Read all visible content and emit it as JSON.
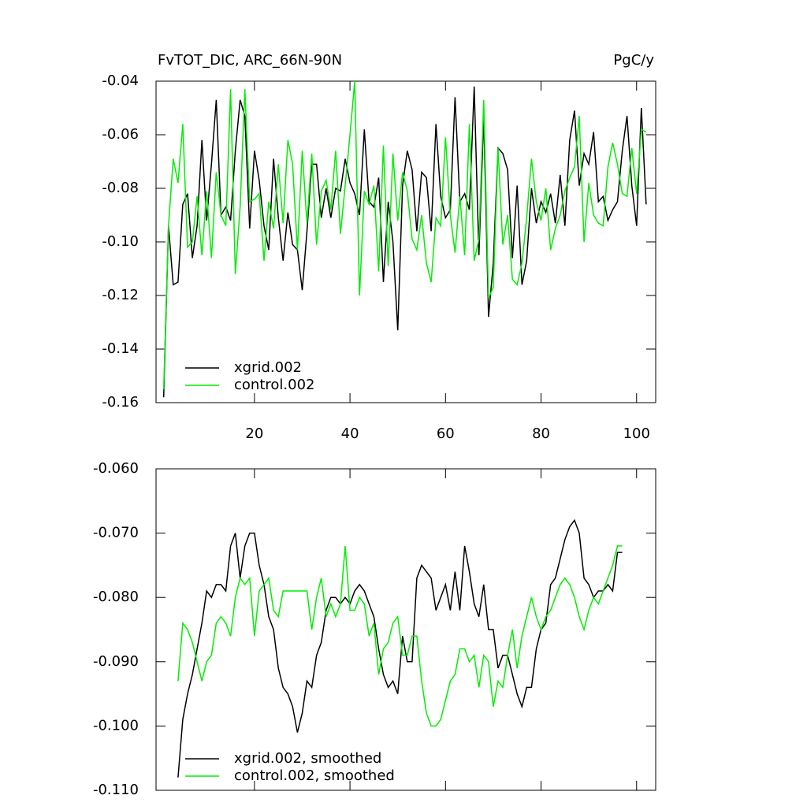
{
  "chart_data": [
    {
      "type": "line",
      "title": "FvTOT_DIC, ARC_66N-90N",
      "units": "PgC/y",
      "x": [
        1,
        2,
        3,
        4,
        5,
        6,
        7,
        8,
        9,
        10,
        11,
        12,
        13,
        14,
        15,
        16,
        17,
        18,
        19,
        20,
        21,
        22,
        23,
        24,
        25,
        26,
        27,
        28,
        29,
        30,
        31,
        32,
        33,
        34,
        35,
        36,
        37,
        38,
        39,
        40,
        41,
        42,
        43,
        44,
        45,
        46,
        47,
        48,
        49,
        50,
        51,
        52,
        53,
        54,
        55,
        56,
        57,
        58,
        59,
        60,
        61,
        62,
        63,
        64,
        65,
        66,
        67,
        68,
        69,
        70,
        71,
        72,
        73,
        74,
        75,
        76,
        77,
        78,
        79,
        80,
        81,
        82,
        83,
        84,
        85,
        86,
        87,
        88,
        89,
        90,
        91,
        92,
        93,
        94,
        95,
        96,
        97,
        98,
        99,
        100,
        101,
        102
      ],
      "series": [
        {
          "name": "xgrid.002",
          "color": "#000000",
          "values": [
            -0.158,
            -0.094,
            -0.116,
            -0.115,
            -0.086,
            -0.082,
            -0.106,
            -0.094,
            -0.062,
            -0.092,
            -0.071,
            -0.047,
            -0.09,
            -0.087,
            -0.092,
            -0.066,
            -0.047,
            -0.053,
            -0.095,
            -0.066,
            -0.077,
            -0.094,
            -0.103,
            -0.069,
            -0.091,
            -0.107,
            -0.089,
            -0.101,
            -0.103,
            -0.118,
            -0.096,
            -0.071,
            -0.071,
            -0.091,
            -0.08,
            -0.091,
            -0.08,
            -0.081,
            -0.069,
            -0.078,
            -0.082,
            -0.09,
            -0.058,
            -0.085,
            -0.087,
            -0.076,
            -0.115,
            -0.085,
            -0.1,
            -0.133,
            -0.079,
            -0.066,
            -0.073,
            -0.096,
            -0.074,
            -0.076,
            -0.096,
            -0.056,
            -0.083,
            -0.091,
            -0.088,
            -0.046,
            -0.085,
            -0.082,
            -0.088,
            -0.042,
            -0.105,
            -0.053,
            -0.128,
            -0.108,
            -0.065,
            -0.067,
            -0.073,
            -0.106,
            -0.079,
            -0.116,
            -0.107,
            -0.08,
            -0.093,
            -0.085,
            -0.089,
            -0.082,
            -0.093,
            -0.075,
            -0.094,
            -0.062,
            -0.051,
            -0.079,
            -0.067,
            -0.071,
            -0.059,
            -0.085,
            -0.083,
            -0.092,
            -0.088,
            -0.085,
            -0.066,
            -0.053,
            -0.079,
            -0.094,
            -0.05,
            -0.086
          ]
        },
        {
          "name": "control.002",
          "color": "#00ee00",
          "values": [
            -0.155,
            -0.094,
            -0.069,
            -0.078,
            -0.056,
            -0.102,
            -0.1,
            -0.083,
            -0.105,
            -0.081,
            -0.106,
            -0.074,
            -0.09,
            -0.094,
            -0.043,
            -0.112,
            -0.087,
            -0.043,
            -0.085,
            -0.084,
            -0.082,
            -0.107,
            -0.085,
            -0.095,
            -0.071,
            -0.093,
            -0.062,
            -0.071,
            -0.103,
            -0.066,
            -0.093,
            -0.067,
            -0.101,
            -0.081,
            -0.077,
            -0.088,
            -0.066,
            -0.097,
            -0.079,
            -0.06,
            -0.04,
            -0.12,
            -0.081,
            -0.086,
            -0.079,
            -0.111,
            -0.064,
            -0.109,
            -0.067,
            -0.092,
            -0.074,
            -0.081,
            -0.099,
            -0.103,
            -0.09,
            -0.108,
            -0.115,
            -0.091,
            -0.094,
            -0.061,
            -0.09,
            -0.104,
            -0.083,
            -0.105,
            -0.056,
            -0.107,
            -0.099,
            -0.047,
            -0.121,
            -0.117,
            -0.065,
            -0.101,
            -0.09,
            -0.114,
            -0.116,
            -0.108,
            -0.091,
            -0.069,
            -0.085,
            -0.092,
            -0.08,
            -0.103,
            -0.095,
            -0.09,
            -0.081,
            -0.076,
            -0.072,
            -0.053,
            -0.1,
            -0.078,
            -0.09,
            -0.093,
            -0.094,
            -0.072,
            -0.063,
            -0.071,
            -0.082,
            -0.083,
            -0.065,
            -0.082,
            -0.058,
            -0.059
          ]
        }
      ],
      "xlim": [
        -0.6,
        104
      ],
      "xticks": [
        20,
        40,
        60,
        80,
        100
      ],
      "xtick_labels": true,
      "ylim": [
        -0.16,
        -0.04
      ],
      "yticks": [
        -0.04,
        -0.06,
        -0.08,
        {
          "value": -0.1,
          "label": "-0.10"
        },
        -0.12,
        -0.14,
        -0.16
      ]
    },
    {
      "type": "line",
      "x": [
        4,
        5,
        6,
        7,
        8,
        9,
        10,
        11,
        12,
        13,
        14,
        15,
        16,
        17,
        18,
        19,
        20,
        21,
        22,
        23,
        24,
        25,
        26,
        27,
        28,
        29,
        30,
        31,
        32,
        33,
        34,
        35,
        36,
        37,
        38,
        39,
        40,
        41,
        42,
        43,
        44,
        45,
        46,
        47,
        48,
        49,
        50,
        51,
        52,
        53,
        54,
        55,
        56,
        57,
        58,
        59,
        60,
        61,
        62,
        63,
        64,
        65,
        66,
        67,
        68,
        69,
        70,
        71,
        72,
        73,
        74,
        75,
        76,
        77,
        78,
        79,
        80,
        81,
        82,
        83,
        84,
        85,
        86,
        87,
        88,
        89,
        90,
        91,
        92,
        93,
        94,
        95,
        96,
        97
      ],
      "series": [
        {
          "name": "xgrid.002, smoothed",
          "color": "#000000",
          "values": [
            -0.108,
            -0.099,
            -0.095,
            -0.092,
            -0.088,
            -0.084,
            -0.079,
            -0.08,
            -0.078,
            -0.078,
            -0.079,
            -0.072,
            -0.07,
            -0.077,
            -0.072,
            -0.07,
            -0.07,
            -0.075,
            -0.078,
            -0.083,
            -0.085,
            -0.091,
            -0.094,
            -0.095,
            -0.097,
            -0.101,
            -0.098,
            -0.093,
            -0.094,
            -0.089,
            -0.087,
            -0.082,
            -0.08,
            -0.08,
            -0.081,
            -0.08,
            -0.081,
            -0.079,
            -0.078,
            -0.079,
            -0.081,
            -0.083,
            -0.088,
            -0.092,
            -0.094,
            -0.093,
            -0.095,
            -0.086,
            -0.09,
            -0.09,
            -0.077,
            -0.075,
            -0.076,
            -0.077,
            -0.082,
            -0.08,
            -0.078,
            -0.082,
            -0.076,
            -0.082,
            -0.072,
            -0.076,
            -0.081,
            -0.083,
            -0.078,
            -0.085,
            -0.085,
            -0.091,
            -0.089,
            -0.089,
            -0.092,
            -0.095,
            -0.097,
            -0.094,
            -0.094,
            -0.088,
            -0.085,
            -0.084,
            -0.078,
            -0.077,
            -0.074,
            -0.071,
            -0.069,
            -0.068,
            -0.07,
            -0.077,
            -0.078,
            -0.08,
            -0.079,
            -0.079,
            -0.078,
            -0.079,
            -0.073,
            -0.073
          ]
        },
        {
          "name": "control.002, smoothed",
          "color": "#00ee00",
          "values": [
            -0.093,
            -0.084,
            -0.085,
            -0.087,
            -0.09,
            -0.093,
            -0.09,
            -0.089,
            -0.084,
            -0.083,
            -0.084,
            -0.086,
            -0.08,
            -0.077,
            -0.078,
            -0.077,
            -0.086,
            -0.079,
            -0.078,
            -0.077,
            -0.082,
            -0.083,
            -0.079,
            -0.079,
            -0.079,
            -0.079,
            -0.079,
            -0.079,
            -0.085,
            -0.08,
            -0.077,
            -0.083,
            -0.081,
            -0.083,
            -0.081,
            -0.072,
            -0.082,
            -0.082,
            -0.08,
            -0.081,
            -0.086,
            -0.084,
            -0.092,
            -0.088,
            -0.087,
            -0.084,
            -0.083,
            -0.089,
            -0.089,
            -0.086,
            -0.086,
            -0.093,
            -0.098,
            -0.1,
            -0.1,
            -0.099,
            -0.096,
            -0.093,
            -0.092,
            -0.088,
            -0.088,
            -0.09,
            -0.089,
            -0.094,
            -0.089,
            -0.09,
            -0.097,
            -0.093,
            -0.094,
            -0.089,
            -0.085,
            -0.091,
            -0.086,
            -0.083,
            -0.08,
            -0.083,
            -0.085,
            -0.083,
            -0.082,
            -0.08,
            -0.078,
            -0.077,
            -0.078,
            -0.08,
            -0.083,
            -0.085,
            -0.082,
            -0.08,
            -0.081,
            -0.079,
            -0.077,
            -0.075,
            -0.072,
            -0.072
          ]
        }
      ],
      "xlim": [
        -0.6,
        104
      ],
      "xticks": [
        20,
        40,
        60,
        80,
        100
      ],
      "xtick_labels": false,
      "ylim": [
        -0.11,
        -0.06
      ],
      "yticks": [
        {
          "value": -0.06,
          "label": "-0.060"
        },
        {
          "value": -0.07,
          "label": "-0.070"
        },
        {
          "value": -0.08,
          "label": "-0.080"
        },
        {
          "value": -0.09,
          "label": "-0.090"
        },
        {
          "value": -0.1,
          "label": "-0.100"
        },
        {
          "value": -0.11,
          "label": "-0.110"
        }
      ]
    }
  ]
}
